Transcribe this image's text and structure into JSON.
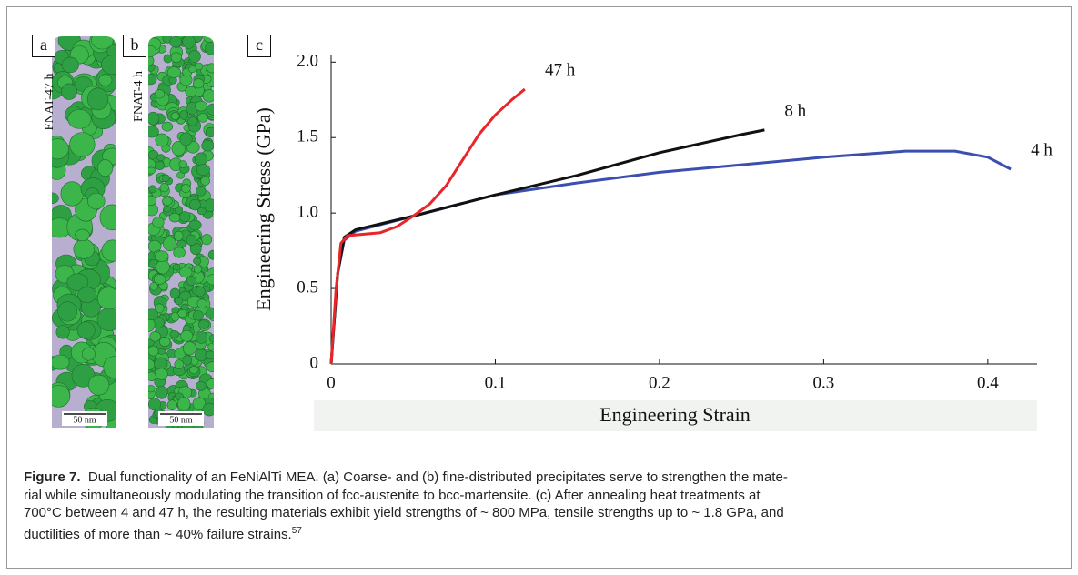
{
  "panels": [
    {
      "label": "a",
      "sample": "FNAT-47 h",
      "scale_bar": "50 nm"
    },
    {
      "label": "b",
      "sample": "FNAT-4 h",
      "scale_bar": "50 nm"
    }
  ],
  "chart_data": {
    "type": "line",
    "label": "c",
    "xlabel": "Engineering Strain",
    "ylabel": "Engineering Stress (GPa)",
    "xlim": [
      0,
      0.43
    ],
    "ylim": [
      0,
      2.05
    ],
    "xticks": [
      0,
      0.1,
      0.2,
      0.3,
      0.4
    ],
    "yticks": [
      0,
      0.5,
      {
        "value": 1,
        "label": "1.0"
      },
      1.5,
      {
        "value": 2,
        "label": "2.0"
      }
    ],
    "series": [
      {
        "name": "47 h",
        "color": "#e8262a",
        "x": [
          0,
          0.003,
          0.006,
          0.01,
          0.02,
          0.03,
          0.04,
          0.05,
          0.06,
          0.07,
          0.08,
          0.09,
          0.1,
          0.11,
          0.118
        ],
        "values": [
          0,
          0.5,
          0.8,
          0.85,
          0.86,
          0.87,
          0.91,
          0.98,
          1.06,
          1.18,
          1.35,
          1.52,
          1.65,
          1.75,
          1.82
        ]
      },
      {
        "name": "8 h",
        "color": "#111111",
        "x": [
          0,
          0.004,
          0.008,
          0.015,
          0.05,
          0.1,
          0.15,
          0.2,
          0.25,
          0.264
        ],
        "values": [
          0,
          0.6,
          0.84,
          0.89,
          0.98,
          1.12,
          1.25,
          1.4,
          1.52,
          1.55
        ]
      },
      {
        "name": "4 h",
        "color": "#3b4fb0",
        "x": [
          0,
          0.004,
          0.008,
          0.015,
          0.05,
          0.1,
          0.15,
          0.2,
          0.25,
          0.3,
          0.35,
          0.38,
          0.4,
          0.414
        ],
        "values": [
          0,
          0.6,
          0.82,
          0.88,
          0.98,
          1.12,
          1.2,
          1.27,
          1.32,
          1.37,
          1.41,
          1.41,
          1.37,
          1.29
        ]
      }
    ]
  },
  "caption": {
    "label": "Figure 7.",
    "lines": [
      "Dual functionality of an FeNiAlTi MEA. (a) Coarse- and (b) fine-distributed precipitates serve to strengthen the mate-",
      "rial while simultaneously modulating the transition of fcc-austenite to bcc-martensite. (c) After annealing heat treatments at",
      "700°C between 4 and 47 h, the resulting materials exhibit yield strengths of ~ 800 MPa, tensile strengths up to ~ 1.8 GPa, and",
      "ductilities of more than ~ 40% failure strains."
    ],
    "ref": "57"
  }
}
